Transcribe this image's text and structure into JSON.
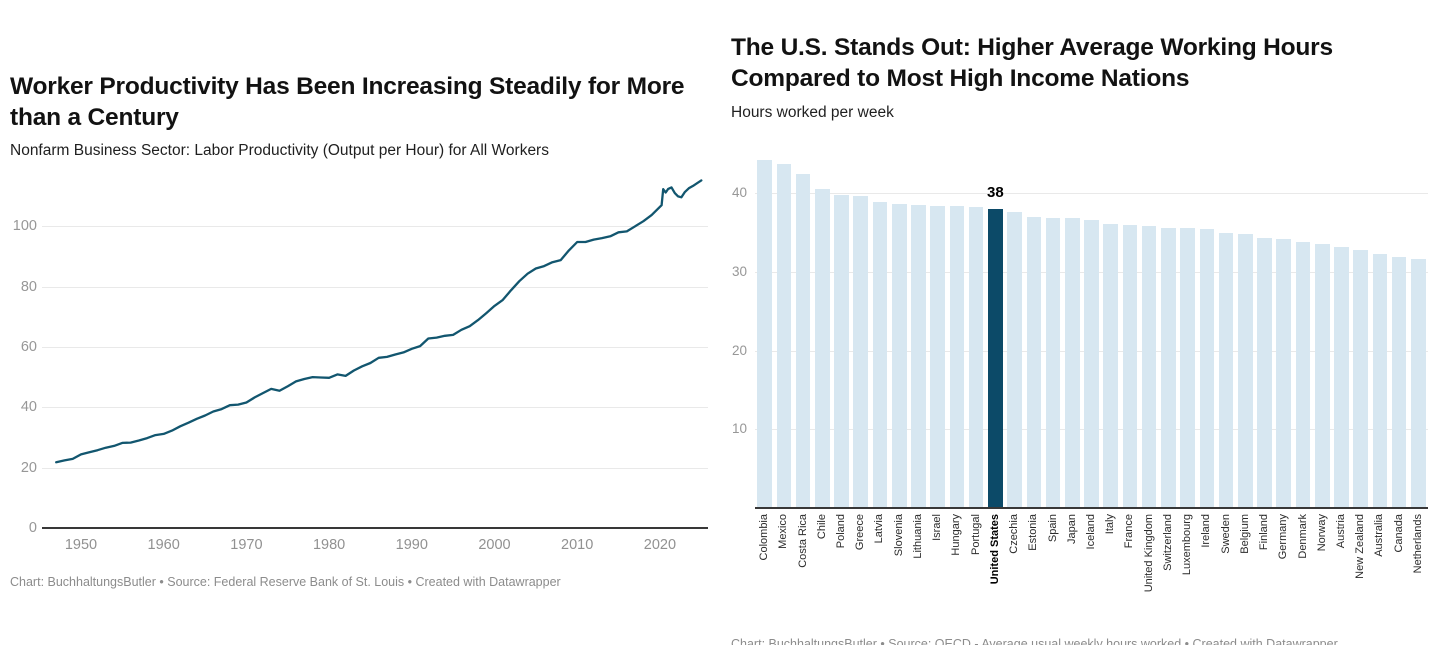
{
  "chart_data": [
    {
      "type": "line",
      "title": "Worker Productivity Has Been Increasing Steadily for More than a Century",
      "subtitle": "Nonfarm Business Sector: Labor Productivity (Output per Hour) for All Workers",
      "footer": "Chart: BuchhaltungsButler • Source: Federal Reserve Bank of St. Louis • Created with Datawrapper",
      "xlabel": "",
      "ylabel": "",
      "ylim": [
        0,
        118
      ],
      "xlim": [
        1946.5,
        2025.7
      ],
      "y_ticks": [
        0,
        20,
        40,
        60,
        80,
        100
      ],
      "x_ticks": [
        1950,
        1960,
        1970,
        1980,
        1990,
        2000,
        2010,
        2020
      ],
      "grid": "horizontal",
      "legend": "none",
      "line_color": "#12566f",
      "series": [
        {
          "name": "Labor productivity (output per hour), index",
          "points": [
            [
              1947,
              21.8
            ],
            [
              1948,
              22.4
            ],
            [
              1949,
              22.9
            ],
            [
              1950,
              24.4
            ],
            [
              1951,
              25.1
            ],
            [
              1952,
              25.8
            ],
            [
              1953,
              26.6
            ],
            [
              1954,
              27.2
            ],
            [
              1955,
              28.2
            ],
            [
              1956,
              28.3
            ],
            [
              1957,
              29.0
            ],
            [
              1958,
              29.8
            ],
            [
              1959,
              30.8
            ],
            [
              1960,
              31.2
            ],
            [
              1961,
              32.3
            ],
            [
              1962,
              33.7
            ],
            [
              1963,
              34.9
            ],
            [
              1964,
              36.2
            ],
            [
              1965,
              37.3
            ],
            [
              1966,
              38.6
            ],
            [
              1967,
              39.4
            ],
            [
              1968,
              40.7
            ],
            [
              1969,
              40.9
            ],
            [
              1970,
              41.6
            ],
            [
              1971,
              43.3
            ],
            [
              1972,
              44.7
            ],
            [
              1973,
              46.1
            ],
            [
              1974,
              45.5
            ],
            [
              1975,
              47.0
            ],
            [
              1976,
              48.6
            ],
            [
              1977,
              49.4
            ],
            [
              1978,
              50.0
            ],
            [
              1979,
              49.9
            ],
            [
              1980,
              49.8
            ],
            [
              1981,
              50.9
            ],
            [
              1982,
              50.4
            ],
            [
              1983,
              52.2
            ],
            [
              1984,
              53.6
            ],
            [
              1985,
              54.7
            ],
            [
              1986,
              56.4
            ],
            [
              1987,
              56.7
            ],
            [
              1988,
              57.5
            ],
            [
              1989,
              58.2
            ],
            [
              1990,
              59.4
            ],
            [
              1991,
              60.3
            ],
            [
              1992,
              62.8
            ],
            [
              1993,
              63.1
            ],
            [
              1994,
              63.7
            ],
            [
              1995,
              64.0
            ],
            [
              1996,
              65.7
            ],
            [
              1997,
              66.9
            ],
            [
              1998,
              68.9
            ],
            [
              1999,
              71.2
            ],
            [
              2000,
              73.6
            ],
            [
              2001,
              75.6
            ],
            [
              2002,
              78.8
            ],
            [
              2003,
              81.8
            ],
            [
              2004,
              84.3
            ],
            [
              2005,
              86.0
            ],
            [
              2006,
              86.8
            ],
            [
              2007,
              88.1
            ],
            [
              2008,
              88.8
            ],
            [
              2009,
              92.0
            ],
            [
              2010,
              94.8
            ],
            [
              2011,
              94.8
            ],
            [
              2012,
              95.6
            ],
            [
              2013,
              96.1
            ],
            [
              2014,
              96.7
            ],
            [
              2015,
              98.0
            ],
            [
              2016,
              98.3
            ],
            [
              2017,
              100.0
            ],
            [
              2018,
              101.7
            ],
            [
              2019,
              103.7
            ],
            [
              2020.2,
              107.0
            ],
            [
              2020.4,
              112.3
            ],
            [
              2020.7,
              111.2
            ],
            [
              2021,
              112.4
            ],
            [
              2021.4,
              112.9
            ],
            [
              2021.8,
              111.0
            ],
            [
              2022.2,
              109.9
            ],
            [
              2022.6,
              109.6
            ],
            [
              2023,
              111.3
            ],
            [
              2023.5,
              112.6
            ],
            [
              2024,
              113.4
            ],
            [
              2024.5,
              114.3
            ],
            [
              2025,
              115.2
            ]
          ]
        }
      ]
    },
    {
      "type": "bar",
      "title": "The U.S. Stands Out: Higher Average Working Hours Compared to Most High Income Nations",
      "subtitle": "Hours worked per week",
      "footer": "Chart: BuchhaltungsButler • Source: OECD - Average usual weekly hours worked • Created with Datawrapper",
      "xlabel": "",
      "ylabel": "",
      "ylim": [
        0,
        45
      ],
      "y_ticks": [
        10,
        20,
        30,
        40
      ],
      "grid": "horizontal",
      "legend": "none",
      "bar_color": "#d7e7f1",
      "highlight_color": "#0c4a68",
      "highlight_category": "United States",
      "highlight_value_label": "38",
      "categories": [
        "Colombia",
        "Mexico",
        "Costa Rica",
        "Chile",
        "Poland",
        "Greece",
        "Latvia",
        "Slovenia",
        "Lithuania",
        "Israel",
        "Hungary",
        "Portugal",
        "United States",
        "Czechia",
        "Estonia",
        "Spain",
        "Japan",
        "Iceland",
        "Italy",
        "France",
        "United Kingdom",
        "Switzerland",
        "Luxembourg",
        "Ireland",
        "Sweden",
        "Belgium",
        "Finland",
        "Germany",
        "Denmark",
        "Norway",
        "Austria",
        "New Zealand",
        "Australia",
        "Canada",
        "Netherlands"
      ],
      "values": [
        44.2,
        43.7,
        42.4,
        40.5,
        39.8,
        39.6,
        38.8,
        38.6,
        38.5,
        38.4,
        38.4,
        38.2,
        38,
        37.6,
        36.9,
        36.8,
        36.8,
        36.6,
        36.1,
        35.9,
        35.8,
        35.6,
        35.5,
        35.4,
        34.9,
        34.8,
        34.3,
        34.1,
        33.8,
        33.5,
        33.2,
        32.7,
        32.3,
        31.9,
        31.6
      ]
    }
  ]
}
